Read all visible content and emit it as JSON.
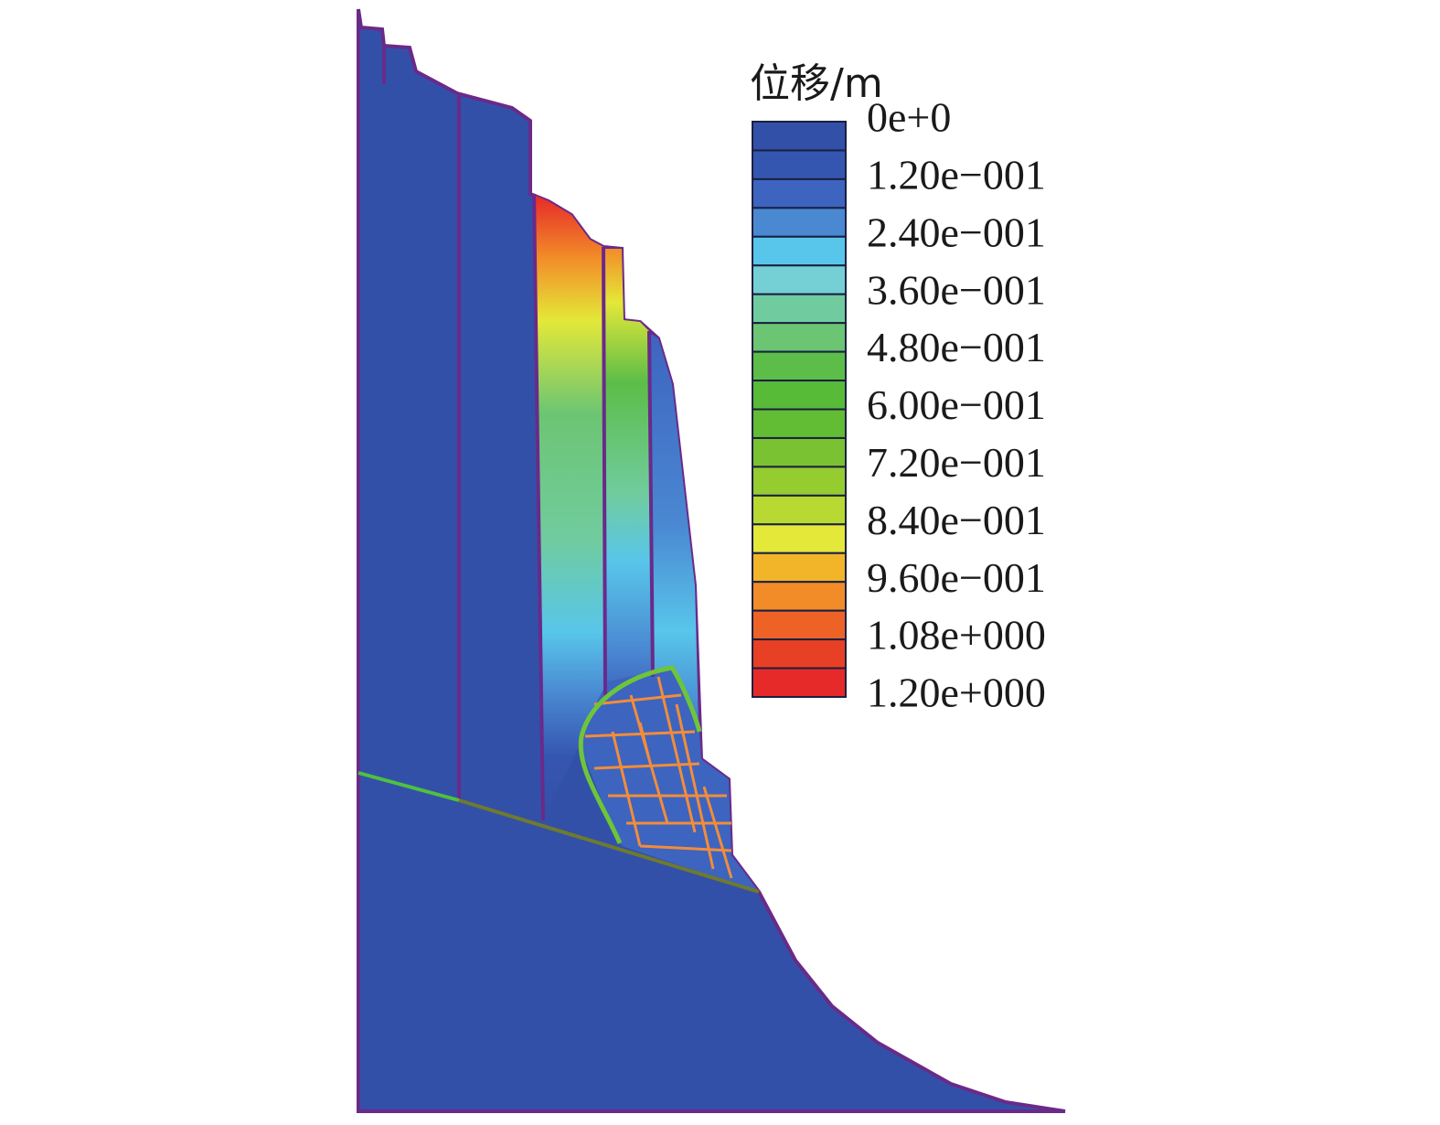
{
  "legend": {
    "title": "位移/m",
    "labels": [
      "0e+0",
      "1.20e−001",
      "2.40e−001",
      "3.60e−001",
      "4.80e−001",
      "6.00e−001",
      "7.20e−001",
      "8.40e−001",
      "9.60e−001",
      "1.08e+000",
      "1.20e+000"
    ],
    "colors": [
      "#3350a8",
      "#3556b0",
      "#3d64bf",
      "#4a88d2",
      "#58c6ea",
      "#74d0d4",
      "#70cc9e",
      "#6cc572",
      "#5cbd48",
      "#58bb38",
      "#62bc34",
      "#7ac232",
      "#95cc30",
      "#b8d932",
      "#e4e838",
      "#f2b428",
      "#f28c28",
      "#ee6226",
      "#e84024",
      "#e62a2a"
    ]
  }
}
